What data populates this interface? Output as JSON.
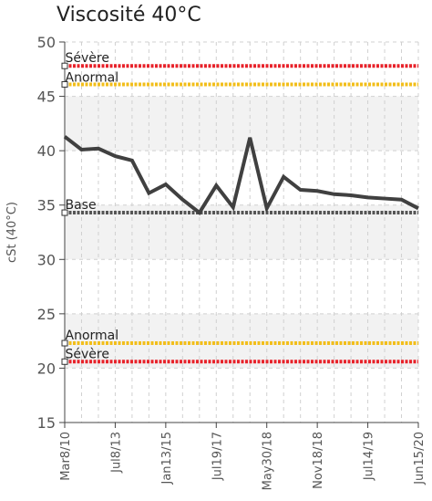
{
  "chart_data": {
    "type": "line",
    "title": "Viscosité 40°C",
    "ylabel": "cSt (40°C)",
    "xlabel": "",
    "ylim": [
      15,
      50
    ],
    "yticks": [
      15,
      20,
      25,
      30,
      35,
      40,
      45,
      50
    ],
    "grid": true,
    "x_tick_labels": [
      "Mar8/10",
      "Jul8/13",
      "Jan13/15",
      "Jul19/17",
      "May30/18",
      "Nov18/18",
      "Jul14/19",
      "Jun15/20"
    ],
    "x_tick_positions": [
      0,
      3,
      6,
      9,
      12,
      15,
      18,
      21
    ],
    "x_range": [
      0,
      21
    ],
    "series": [
      {
        "color": "#404040",
        "x": [
          0,
          1,
          2,
          3,
          4,
          5,
          6,
          7,
          8,
          9,
          10,
          11,
          12,
          13,
          14,
          15,
          16,
          17,
          18,
          19,
          20,
          21
        ],
        "values": [
          41.3,
          40.1,
          40.2,
          39.5,
          39.1,
          36.1,
          36.9,
          35.5,
          34.3,
          36.8,
          34.8,
          41.2,
          34.7,
          37.6,
          36.4,
          36.3,
          36.0,
          35.9,
          35.7,
          35.6,
          35.5,
          34.7
        ]
      }
    ],
    "reference_lines": [
      {
        "label": "Sévère",
        "value": 47.8,
        "color": "#e8222a"
      },
      {
        "label": "Anormal",
        "value": 46.1,
        "color": "#f2be1a"
      },
      {
        "label": "Base",
        "value": 34.3,
        "color": "#555555"
      },
      {
        "label": "Anormal",
        "value": 22.3,
        "color": "#f2be1a"
      },
      {
        "label": "Sévère",
        "value": 20.6,
        "color": "#e8222a"
      }
    ],
    "bands": [
      {
        "from": 45,
        "to": 50,
        "color": "#ffffff"
      },
      {
        "from": 40,
        "to": 45,
        "color": "#f2f2f2"
      },
      {
        "from": 35,
        "to": 40,
        "color": "#ffffff"
      },
      {
        "from": 30,
        "to": 35,
        "color": "#f2f2f2"
      },
      {
        "from": 25,
        "to": 30,
        "color": "#ffffff"
      },
      {
        "from": 20,
        "to": 25,
        "color": "#f2f2f2"
      },
      {
        "from": 15,
        "to": 20,
        "color": "#ffffff"
      }
    ]
  }
}
